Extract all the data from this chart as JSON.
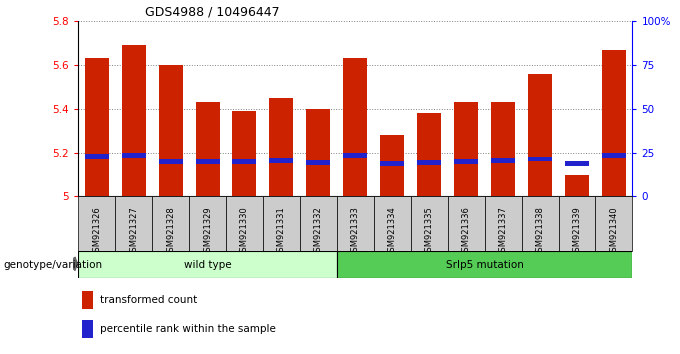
{
  "title": "GDS4988 / 10496447",
  "samples": [
    "GSM921326",
    "GSM921327",
    "GSM921328",
    "GSM921329",
    "GSM921330",
    "GSM921331",
    "GSM921332",
    "GSM921333",
    "GSM921334",
    "GSM921335",
    "GSM921336",
    "GSM921337",
    "GSM921338",
    "GSM921339",
    "GSM921340"
  ],
  "transformed_count": [
    5.63,
    5.69,
    5.6,
    5.43,
    5.39,
    5.45,
    5.4,
    5.63,
    5.28,
    5.38,
    5.43,
    5.43,
    5.56,
    5.1,
    5.67
  ],
  "percentile_bottom": [
    5.17,
    5.175,
    5.15,
    5.15,
    5.15,
    5.155,
    5.145,
    5.175,
    5.14,
    5.145,
    5.15,
    5.155,
    5.16,
    5.14,
    5.175
  ],
  "ymin": 5.0,
  "ymax": 5.8,
  "bar_color": "#cc2200",
  "percentile_color": "#2222cc",
  "wild_type_label": "wild type",
  "mutation_label": "Srlp5 mutation",
  "genotype_label": "genotype/variation",
  "legend_count_label": "transformed count",
  "legend_pct_label": "percentile rank within the sample",
  "wild_type_bg": "#ccffcc",
  "mutation_bg": "#55cc55",
  "xtick_bg": "#cccccc",
  "bar_width": 0.65,
  "n_wild": 7,
  "n_mut": 8
}
